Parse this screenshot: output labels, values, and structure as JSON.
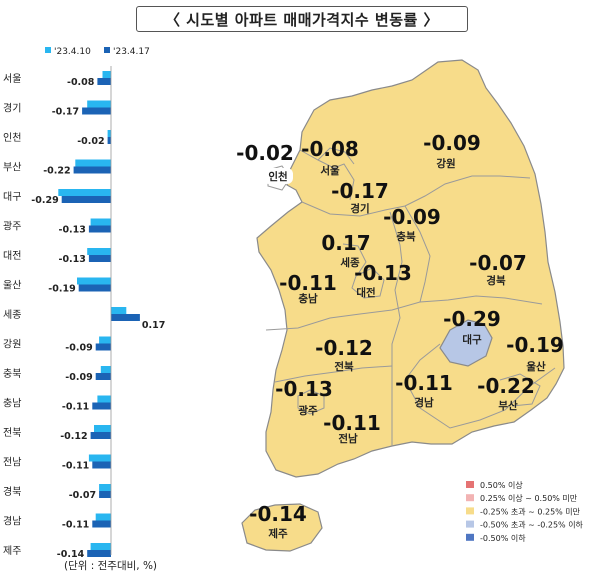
{
  "title": "〈 시도별 아파트 매매가격지수 변동률 〉",
  "unit_note": "(단위 : 전주대비, %)",
  "colors": {
    "series1": "#29b6f0",
    "series2": "#1b63b5",
    "map_fill": "#f7dc8a",
    "map_stroke": "#8a8a8a",
    "daegu_fill": "#b7c7e6"
  },
  "chart_data": [
    {
      "type": "bar",
      "orientation": "horizontal",
      "categories": [
        "서울",
        "경기",
        "인천",
        "부산",
        "대구",
        "광주",
        "대전",
        "울산",
        "세종",
        "강원",
        "충북",
        "충남",
        "전북",
        "전남",
        "경북",
        "경남",
        "제주"
      ],
      "series": [
        {
          "name": "'23.4.10",
          "values": [
            -0.05,
            -0.14,
            -0.02,
            -0.21,
            -0.31,
            -0.12,
            -0.14,
            -0.2,
            0.09,
            -0.07,
            -0.06,
            -0.08,
            -0.1,
            -0.13,
            -0.07,
            -0.09,
            -0.12
          ]
        },
        {
          "name": "'23.4.17",
          "values": [
            -0.08,
            -0.17,
            -0.02,
            -0.22,
            -0.29,
            -0.13,
            -0.13,
            -0.19,
            0.17,
            -0.09,
            -0.09,
            -0.11,
            -0.12,
            -0.11,
            -0.07,
            -0.11,
            -0.14
          ]
        }
      ],
      "data_labels": [
        "-0.08",
        "-0.17",
        "-0.02",
        "-0.22",
        "-0.29",
        "-0.13",
        "-0.13",
        "-0.19",
        "0.17",
        "-0.09",
        "-0.09",
        "-0.11",
        "-0.12",
        "-0.11",
        "-0.07",
        "-0.11",
        "-0.14"
      ],
      "legend": "top"
    },
    {
      "type": "choropleth",
      "regions": [
        {
          "name": "서울",
          "value": "-0.08"
        },
        {
          "name": "인천",
          "value": "-0.02"
        },
        {
          "name": "경기",
          "value": "-0.17"
        },
        {
          "name": "강원",
          "value": "-0.09"
        },
        {
          "name": "충북",
          "value": "-0.09"
        },
        {
          "name": "세종",
          "value": "0.17"
        },
        {
          "name": "대전",
          "value": "-0.13"
        },
        {
          "name": "충남",
          "value": "-0.11"
        },
        {
          "name": "경북",
          "value": "-0.07"
        },
        {
          "name": "대구",
          "value": "-0.29"
        },
        {
          "name": "울산",
          "value": "-0.19"
        },
        {
          "name": "전북",
          "value": "-0.12"
        },
        {
          "name": "경남",
          "value": "-0.11"
        },
        {
          "name": "부산",
          "value": "-0.22"
        },
        {
          "name": "광주",
          "value": "-0.13"
        },
        {
          "name": "전남",
          "value": "-0.11"
        },
        {
          "name": "제주",
          "value": "-0.14"
        }
      ],
      "legend": [
        {
          "label": "0.50% 이상",
          "color": "#e57373"
        },
        {
          "label": "0.25% 이상 ~ 0.50% 미만",
          "color": "#f2b3b3"
        },
        {
          "label": "-0.25% 초과 ~ 0.25% 미만",
          "color": "#f7dc8a"
        },
        {
          "label": "-0.50% 초과 ~ -0.25% 이하",
          "color": "#b7c7e6"
        },
        {
          "label": "-0.50% 이하",
          "color": "#4f76c2"
        }
      ]
    }
  ]
}
